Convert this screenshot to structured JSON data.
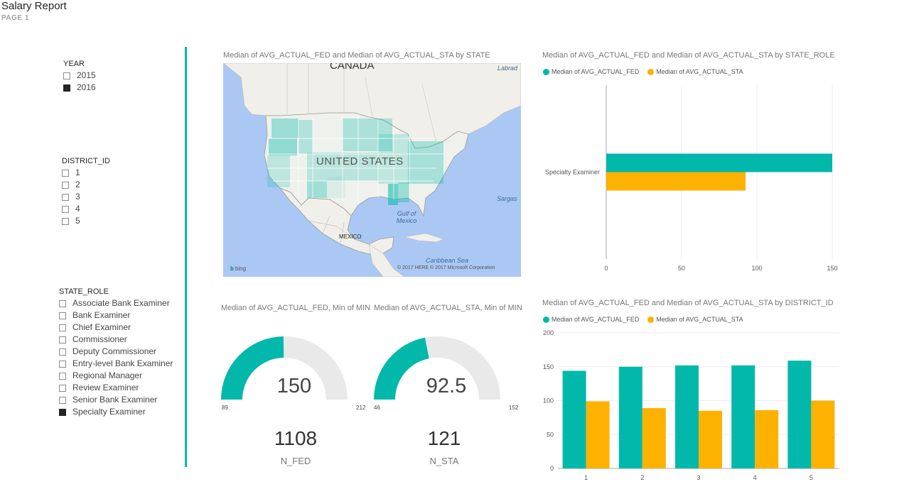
{
  "header": {
    "title": "Salary Report",
    "page": "PAGE 1"
  },
  "colors": {
    "fed": "#01b8aa",
    "sta": "#fdb100",
    "gauge_track": "#e9e9e9",
    "divider": "#01b8aa"
  },
  "slicers": {
    "year": {
      "title": "YEAR",
      "items": [
        {
          "label": "2015",
          "checked": false
        },
        {
          "label": "2016",
          "checked": true
        }
      ]
    },
    "district": {
      "title": "DISTRICT_ID",
      "items": [
        {
          "label": "1",
          "checked": false
        },
        {
          "label": "2",
          "checked": false
        },
        {
          "label": "3",
          "checked": false
        },
        {
          "label": "4",
          "checked": false
        },
        {
          "label": "5",
          "checked": false
        }
      ]
    },
    "state_role": {
      "title": "STATE_ROLE",
      "items": [
        {
          "label": "Associate Bank Examiner",
          "checked": false
        },
        {
          "label": "Bank Examiner",
          "checked": false
        },
        {
          "label": "Chief Examiner",
          "checked": false
        },
        {
          "label": "Commissioner",
          "checked": false
        },
        {
          "label": "Deputy Commissioner",
          "checked": false
        },
        {
          "label": "Entry-level Bank Examiner",
          "checked": false
        },
        {
          "label": "Regional Manager",
          "checked": false
        },
        {
          "label": "Review Examiner",
          "checked": false
        },
        {
          "label": "Senior Bank Examiner",
          "checked": false
        },
        {
          "label": "Specialty Examiner",
          "checked": true
        }
      ]
    }
  },
  "map": {
    "title": "Median of AVG_ACTUAL_FED and Median of AVG_ACTUAL_STA by STATE",
    "labels": {
      "canada": "CANADA",
      "us": "UNITED STATES",
      "mexico": "MEXICO",
      "gulf": "Gulf of Mexico",
      "caribbean": "Caribbean Sea",
      "sargasso": "Sargas",
      "labrador": "Labrad",
      "bing": "bing",
      "copyright": "© 2017 HERE   © 2017 Microsoft Corporation"
    }
  },
  "gauges": [
    {
      "title": "Median of AVG_ACTUAL_FED, Min of MIN...",
      "value": "150",
      "value_num": 150,
      "min": "89",
      "min_num": 89,
      "max": "212",
      "max_num": 212,
      "card_value": "1108",
      "card_label": "N_FED"
    },
    {
      "title": "Median of AVG_ACTUAL_STA, Min of MIN...",
      "value": "92.5",
      "value_num": 92.5,
      "min": "46",
      "min_num": 46,
      "max": "152",
      "max_num": 152,
      "card_value": "121",
      "card_label": "N_STA"
    }
  ],
  "chart_data": [
    {
      "type": "bar",
      "orientation": "horizontal",
      "title": "Median of AVG_ACTUAL_FED and Median of AVG_ACTUAL_STA by STATE_ROLE",
      "categories": [
        "Specialty Examiner"
      ],
      "series": [
        {
          "name": "Median of AVG_ACTUAL_FED",
          "values": [
            150
          ]
        },
        {
          "name": "Median of AVG_ACTUAL_STA",
          "values": [
            92.5
          ]
        }
      ],
      "xlim": [
        0,
        150
      ],
      "xticks": [
        "0",
        "50",
        "100",
        "150"
      ],
      "grid": true,
      "legend": "top-left"
    },
    {
      "type": "bar",
      "title": "Median of AVG_ACTUAL_FED and Median of AVG_ACTUAL_STA by DISTRICT_ID",
      "categories": [
        "1",
        "2",
        "3",
        "4",
        "5"
      ],
      "series": [
        {
          "name": "Median of AVG_ACTUAL_FED",
          "values": [
            144,
            150,
            152,
            152,
            159
          ]
        },
        {
          "name": "Median of AVG_ACTUAL_STA",
          "values": [
            99,
            89,
            85,
            86,
            100
          ]
        }
      ],
      "ylim": [
        0,
        200
      ],
      "yticks": [
        "0",
        "50",
        "100",
        "150",
        "200"
      ],
      "grid": true,
      "legend": "top-left"
    }
  ]
}
